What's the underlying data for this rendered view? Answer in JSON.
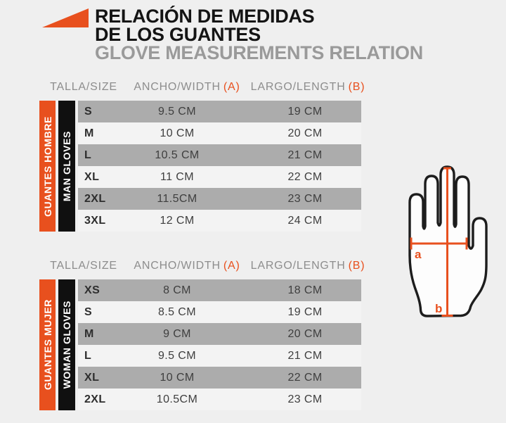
{
  "colors": {
    "accent": "#E8501E",
    "row_dark": "#ACACAC",
    "row_light": "#F3F3F3",
    "bar_black": "#101010",
    "background": "#EFEFEF"
  },
  "header": {
    "title_line1": "RELACIÓN DE MEDIDAS",
    "title_line2": "DE LOS GUANTES",
    "subtitle": "GLOVE MEASUREMENTS RELATION"
  },
  "columns": {
    "size": "TALLA/SIZE",
    "width": "ANCHO/WIDTH",
    "width_suffix": "(A)",
    "length": "LARGO/LENGTH",
    "length_suffix": "(B)"
  },
  "tables": [
    {
      "side_label_primary": "GUANTES HOMBRE",
      "side_label_secondary": "MAN GLOVES",
      "rows": [
        {
          "size": "S",
          "width": "9.5 CM",
          "length": "19 CM"
        },
        {
          "size": "M",
          "width": "10 CM",
          "length": "20 CM"
        },
        {
          "size": "L",
          "width": "10.5 CM",
          "length": "21 CM"
        },
        {
          "size": "XL",
          "width": "11 CM",
          "length": "22 CM"
        },
        {
          "size": "2XL",
          "width": "11.5CM",
          "length": "23 CM"
        },
        {
          "size": "3XL",
          "width": "12 CM",
          "length": "24 CM"
        }
      ]
    },
    {
      "side_label_primary": "GUANTES MUJER",
      "side_label_secondary": "WOMAN GLOVES",
      "rows": [
        {
          "size": "XS",
          "width": "8 CM",
          "length": "18 CM"
        },
        {
          "size": "S",
          "width": "8.5 CM",
          "length": "19 CM"
        },
        {
          "size": "M",
          "width": "9 CM",
          "length": "20 CM"
        },
        {
          "size": "L",
          "width": "9.5 CM",
          "length": "21 CM"
        },
        {
          "size": "XL",
          "width": "10 CM",
          "length": "22 CM"
        },
        {
          "size": "2XL",
          "width": "10.5CM",
          "length": "23 CM"
        }
      ]
    }
  ],
  "diagram": {
    "width_marker": "a",
    "length_marker": "b"
  }
}
